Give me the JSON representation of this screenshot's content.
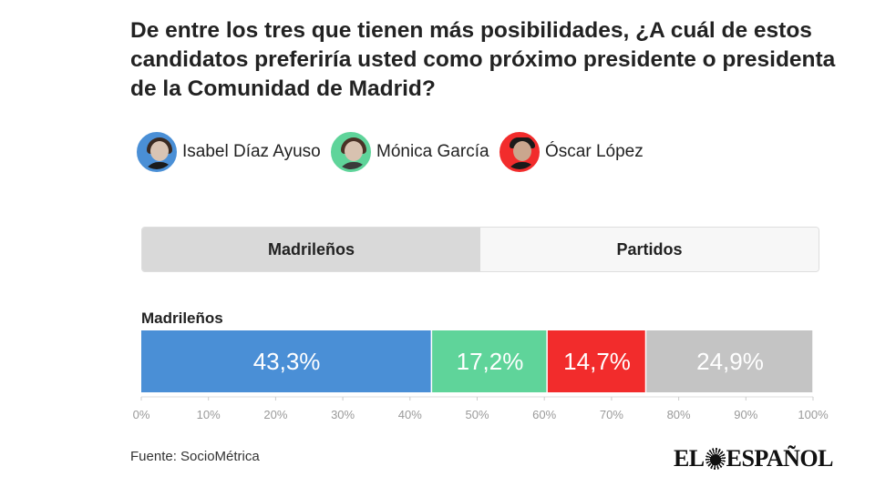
{
  "title": "De entre los tres que tienen más posibilidades, ¿A cuál de estos candidatos preferiría usted como próximo presidente o presidenta de la Comunidad de Madrid?",
  "legend": [
    {
      "name": "Isabel Díaz Ayuso",
      "color": "#4a8fd6",
      "icon": "candidate-photo"
    },
    {
      "name": "Mónica García",
      "color": "#5fd49a",
      "icon": "candidate-photo"
    },
    {
      "name": "Óscar López",
      "color": "#f22c2c",
      "icon": "candidate-photo"
    }
  ],
  "tabs": [
    {
      "label": "Madrileños",
      "active": true
    },
    {
      "label": "Partidos",
      "active": false
    }
  ],
  "chart_data": {
    "type": "bar",
    "stacked": true,
    "orientation": "horizontal",
    "categories": [
      "Madrileños"
    ],
    "series": [
      {
        "name": "Isabel Díaz Ayuso",
        "values": [
          43.3
        ],
        "label": "43,3%",
        "color": "#4a8fd6"
      },
      {
        "name": "Mónica García",
        "values": [
          17.2
        ],
        "label": "17,2%",
        "color": "#5fd49a"
      },
      {
        "name": "Óscar López",
        "values": [
          14.7
        ],
        "label": "14,7%",
        "color": "#f22c2c"
      },
      {
        "values": [
          24.9
        ],
        "label": "24,9%",
        "color": "#c4c4c4"
      }
    ],
    "xlim": [
      0,
      100
    ],
    "xticks": [
      "0%",
      "10%",
      "20%",
      "30%",
      "40%",
      "50%",
      "60%",
      "70%",
      "80%",
      "90%",
      "100%"
    ],
    "grid": false
  },
  "source": "Fuente: SocioMétrica",
  "logo": {
    "left": "EL",
    "right": "ESPAÑOL"
  }
}
